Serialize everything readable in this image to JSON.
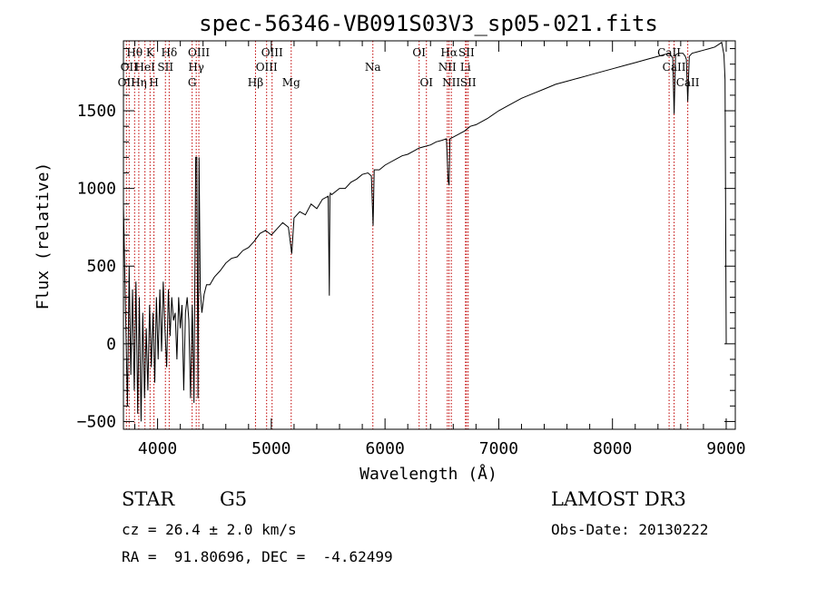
{
  "chart_data": {
    "type": "line",
    "title": "spec-56346-VB091S03V3_sp05-021.fits",
    "xlabel": "Wavelength (Å)",
    "ylabel": "Flux (relative)",
    "xlim": [
      3700,
      9080
    ],
    "ylim": [
      -550,
      1950
    ],
    "x_ticks": [
      4000,
      5000,
      6000,
      7000,
      8000,
      9000
    ],
    "y_ticks": [
      -500,
      0,
      500,
      1000,
      1500
    ],
    "series": [
      {
        "name": "spectrum",
        "x": [
          3700,
          3720,
          3735,
          3750,
          3765,
          3780,
          3795,
          3810,
          3825,
          3840,
          3855,
          3870,
          3885,
          3900,
          3915,
          3930,
          3945,
          3960,
          3975,
          3990,
          4005,
          4020,
          4035,
          4050,
          4065,
          4080,
          4095,
          4110,
          4125,
          4140,
          4155,
          4170,
          4185,
          4200,
          4215,
          4230,
          4245,
          4260,
          4275,
          4290,
          4305,
          4320,
          4335,
          4345,
          4355,
          4365,
          4375,
          4390,
          4410,
          4430,
          4460,
          4500,
          4550,
          4600,
          4650,
          4700,
          4750,
          4800,
          4850,
          4900,
          4950,
          5000,
          5050,
          5100,
          5150,
          5180,
          5200,
          5250,
          5300,
          5350,
          5400,
          5450,
          5500,
          5510,
          5515,
          5520,
          5530,
          5600,
          5650,
          5700,
          5750,
          5800,
          5850,
          5880,
          5895,
          5905,
          5950,
          6000,
          6050,
          6100,
          6150,
          6200,
          6250,
          6300,
          6350,
          6400,
          6450,
          6500,
          6540,
          6555,
          6563,
          6570,
          6600,
          6650,
          6700,
          6750,
          6800,
          6900,
          7000,
          7100,
          7200,
          7300,
          7400,
          7500,
          7600,
          7700,
          7800,
          7900,
          8000,
          8100,
          8200,
          8300,
          8400,
          8450,
          8500,
          8530,
          8542,
          8555,
          8580,
          8620,
          8640,
          8650,
          8662,
          8675,
          8700,
          8750,
          8800,
          8850,
          8900,
          8940,
          8960,
          8980,
          8990,
          9000
        ],
        "values": [
          900,
          150,
          -400,
          500,
          -200,
          350,
          -300,
          400,
          -450,
          300,
          -500,
          200,
          -350,
          100,
          -300,
          250,
          -150,
          200,
          -250,
          300,
          -100,
          350,
          -50,
          400,
          100,
          -150,
          350,
          50,
          300,
          150,
          200,
          -100,
          300,
          100,
          250,
          -300,
          200,
          300,
          150,
          -350,
          250,
          -380,
          1200,
          1200,
          -350,
          1200,
          350,
          200,
          320,
          380,
          380,
          430,
          470,
          520,
          550,
          560,
          600,
          620,
          660,
          710,
          730,
          700,
          740,
          780,
          750,
          580,
          810,
          850,
          830,
          900,
          870,
          930,
          950,
          310,
          950,
          970,
          960,
          1000,
          1000,
          1040,
          1060,
          1090,
          1100,
          1080,
          760,
          1120,
          1120,
          1150,
          1170,
          1190,
          1210,
          1220,
          1240,
          1260,
          1270,
          1280,
          1300,
          1310,
          1320,
          1050,
          1020,
          1320,
          1330,
          1350,
          1370,
          1400,
          1410,
          1450,
          1500,
          1540,
          1580,
          1610,
          1640,
          1670,
          1690,
          1710,
          1730,
          1750,
          1770,
          1790,
          1810,
          1830,
          1850,
          1860,
          1870,
          1840,
          1480,
          1860,
          1870,
          1870,
          1850,
          1830,
          1560,
          1850,
          1870,
          1880,
          1890,
          1900,
          1910,
          1930,
          1940,
          1860,
          1700,
          0
        ]
      }
    ],
    "lines": [
      {
        "wl": 3726,
        "label": "OII",
        "row": 2
      },
      {
        "wl": 3750,
        "label": "OII",
        "row": 1
      },
      {
        "wl": 3798,
        "label": "Hθ",
        "row": 0
      },
      {
        "wl": 3835,
        "label": "Hη",
        "row": 2
      },
      {
        "wl": 3889,
        "label": "HeI",
        "row": 1
      },
      {
        "wl": 3934,
        "label": "K",
        "row": 0
      },
      {
        "wl": 3968,
        "label": "H",
        "row": 2
      },
      {
        "wl": 4069,
        "label": "SII",
        "row": 1
      },
      {
        "wl": 4102,
        "label": "Hδ",
        "row": 0
      },
      {
        "wl": 4304,
        "label": "G",
        "row": 2
      },
      {
        "wl": 4340,
        "label": "Hγ",
        "row": 1
      },
      {
        "wl": 4363,
        "label": "OIII",
        "row": 0
      },
      {
        "wl": 4861,
        "label": "Hβ",
        "row": 2
      },
      {
        "wl": 4959,
        "label": "OIII",
        "row": 1
      },
      {
        "wl": 5007,
        "label": "OIII",
        "row": 0
      },
      {
        "wl": 5175,
        "label": "Mg",
        "row": 2
      },
      {
        "wl": 5893,
        "label": "Na",
        "row": 1
      },
      {
        "wl": 6300,
        "label": "OI",
        "row": 0
      },
      {
        "wl": 6364,
        "label": "OI",
        "row": 2
      },
      {
        "wl": 6548,
        "label": "NII",
        "row": 1
      },
      {
        "wl": 6563,
        "label": "Hα",
        "row": 0
      },
      {
        "wl": 6583,
        "label": "NII",
        "row": 2
      },
      {
        "wl": 6708,
        "label": "Li",
        "row": 1
      },
      {
        "wl": 6716,
        "label": "SII",
        "row": 0
      },
      {
        "wl": 6731,
        "label": "SII",
        "row": 2
      },
      {
        "wl": 8498,
        "label": "CaII",
        "row": 0
      },
      {
        "wl": 8542,
        "label": "CaII",
        "row": 1
      },
      {
        "wl": 8662,
        "label": "CaII",
        "row": 2
      }
    ]
  },
  "info": {
    "class": "STAR",
    "subclass": "G5",
    "cz": "cz = 26.4 ± 2.0 km/s",
    "coords": "RA =  91.80696, DEC =  -4.62499",
    "survey": "LAMOST DR3",
    "obs_date": "Obs-Date: 20130222"
  }
}
